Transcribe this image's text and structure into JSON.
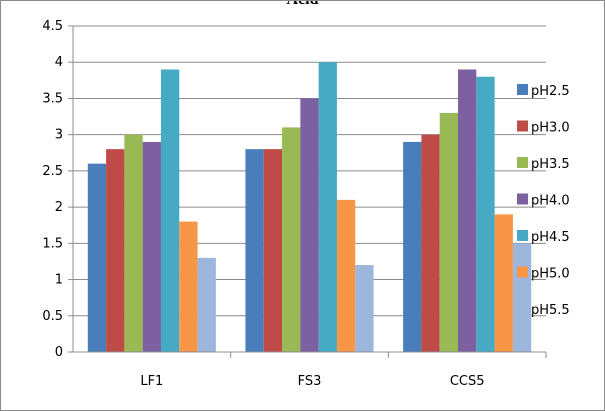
{
  "chart_data": {
    "type": "bar",
    "title": "Acid",
    "xlabel": "",
    "ylabel": "",
    "categories": [
      "LF1",
      "FS3",
      "CCS5"
    ],
    "ylim": [
      0,
      4.5
    ],
    "yticks": [
      "0",
      "0.5",
      "1",
      "1.5",
      "2",
      "2.5",
      "3",
      "3.5",
      "4",
      "4.5"
    ],
    "grid": true,
    "legend_position": "right",
    "series": [
      {
        "name": "pH2.5",
        "color": "#4a7ebb",
        "values": [
          2.6,
          2.8,
          2.9
        ]
      },
      {
        "name": "pH3.0",
        "color": "#be4b48",
        "values": [
          2.8,
          2.8,
          3.0
        ]
      },
      {
        "name": "pH3.5",
        "color": "#98b954",
        "values": [
          3.0,
          3.1,
          3.3
        ]
      },
      {
        "name": "pH4.0",
        "color": "#7d60a0",
        "values": [
          2.9,
          3.5,
          3.9
        ]
      },
      {
        "name": "pH4.5",
        "color": "#46aac5",
        "values": [
          3.9,
          4.0,
          3.8
        ]
      },
      {
        "name": "pH5.0",
        "color": "#f79646",
        "values": [
          1.8,
          2.1,
          1.9
        ]
      },
      {
        "name": "pH5.5",
        "color": "#9cb6dc",
        "values": [
          1.3,
          1.2,
          1.5
        ]
      }
    ]
  }
}
